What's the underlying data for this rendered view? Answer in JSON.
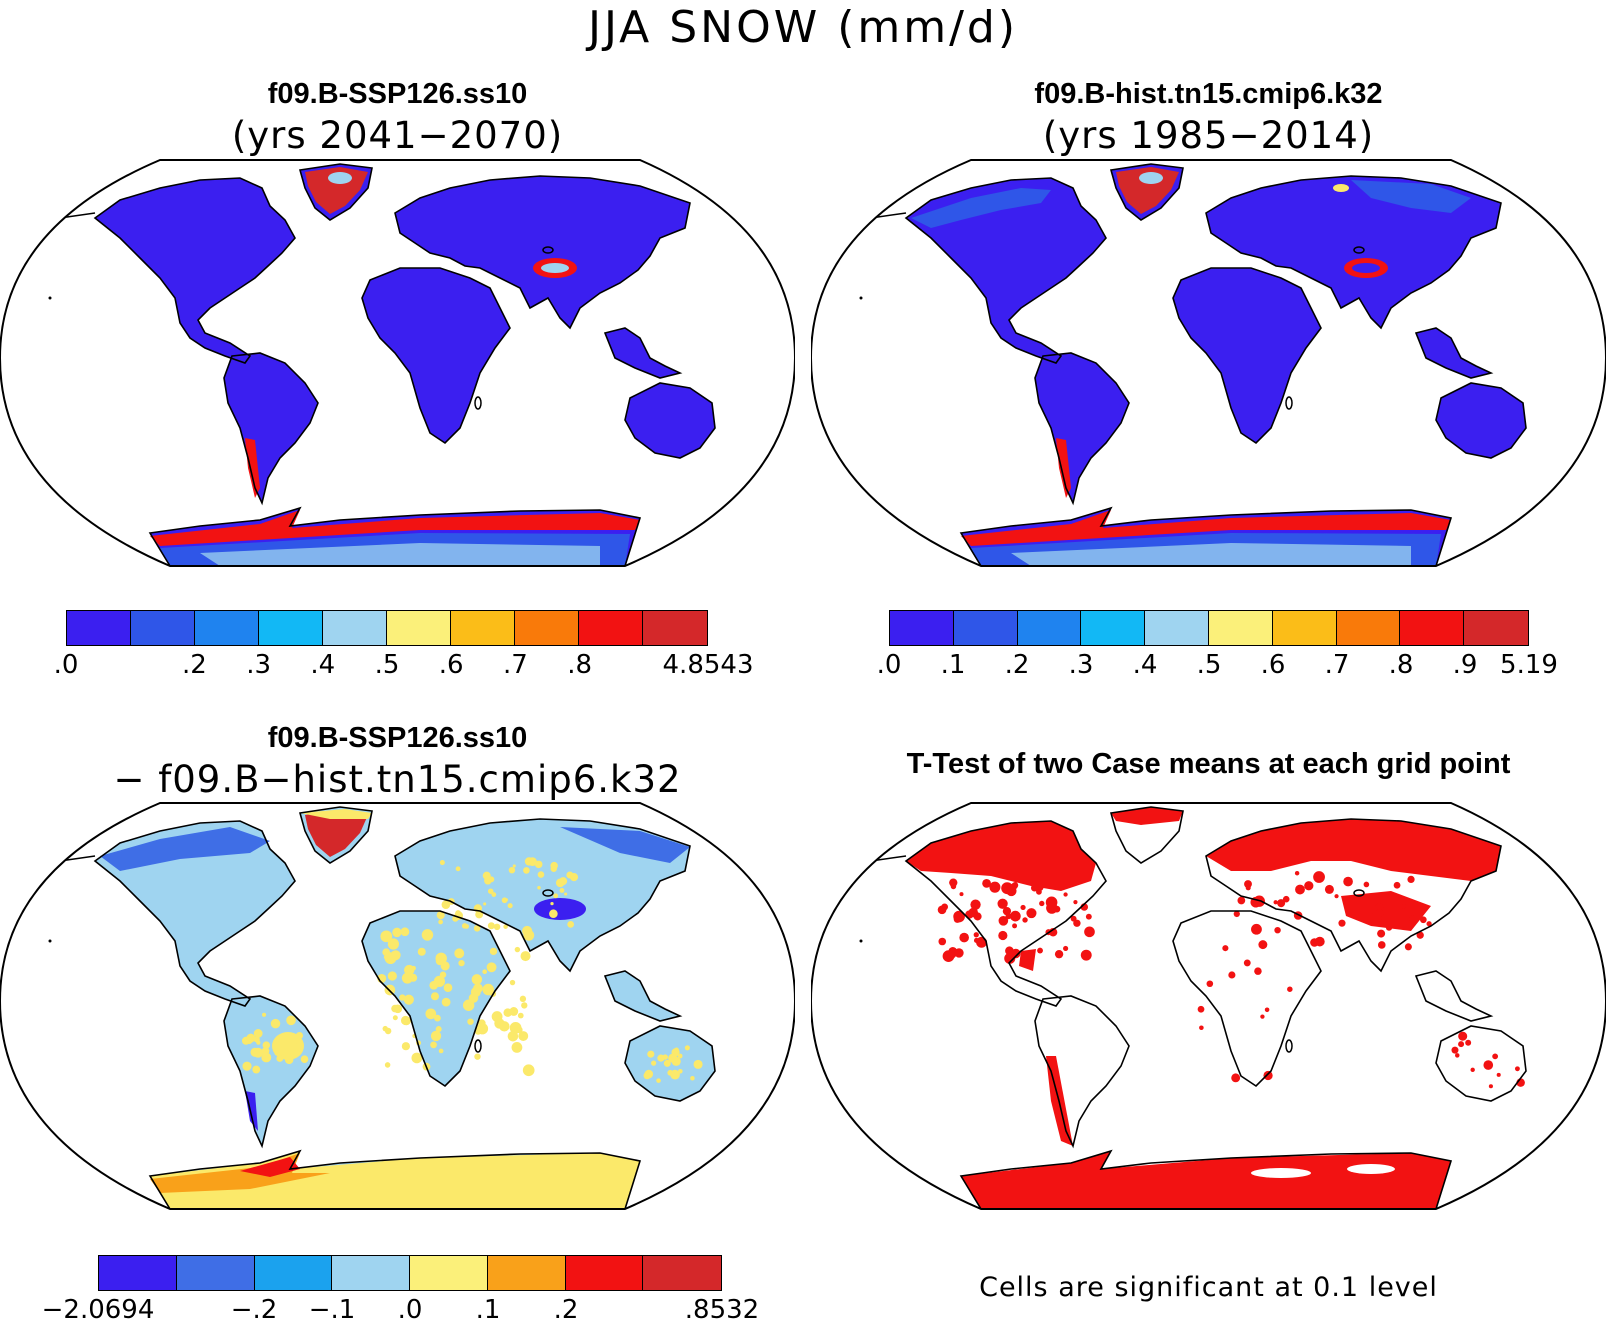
{
  "title": "JJA SNOW (mm/d)",
  "panels": {
    "tl": {
      "title": "f09.B-SSP126.ss10",
      "subtitle": "(yrs 2041−2070)"
    },
    "tr": {
      "title": "f09.B-hist.tn15.cmip6.k32",
      "subtitle": "(yrs 1985−2014)"
    },
    "bl": {
      "title": "f09.B-SSP126.ss10",
      "subtitle": "− f09.B−hist.tn15.cmip6.k32"
    },
    "br": {
      "title": "T-Test of two Case means at each grid point",
      "note": "Cells are significant at 0.1 level"
    }
  },
  "colorbars": {
    "tl": {
      "colors": [
        "#3b1ff0",
        "#2f56e8",
        "#1f83ef",
        "#12b8f5",
        "#9fd4f0",
        "#fbf07a",
        "#fbbd18",
        "#f97a0a",
        "#f21212",
        "#d4282a"
      ],
      "ticks": [
        ".0",
        "",
        ".2",
        ".3",
        ".4",
        ".5",
        ".6",
        ".7",
        ".8",
        "",
        "4.8543"
      ]
    },
    "tr": {
      "colors": [
        "#3b1ff0",
        "#2f56e8",
        "#1f83ef",
        "#12b8f5",
        "#9fd4f0",
        "#fbf07a",
        "#fbbd18",
        "#f97a0a",
        "#f21212",
        "#d4282a"
      ],
      "ticks": [
        ".0",
        ".1",
        ".2",
        ".3",
        ".4",
        ".5",
        ".6",
        ".7",
        ".8",
        ".9",
        "5.19"
      ]
    },
    "bl": {
      "colors": [
        "#3b1ff0",
        "#3f6ee6",
        "#1ba2ee",
        "#9fd4f0",
        "#fbf07a",
        "#f9a11a",
        "#f21212",
        "#d4282a"
      ],
      "ticks": [
        "−2.0694",
        "",
        "−.2",
        "−.1",
        ".0",
        ".1",
        ".2",
        "",
        ".8532"
      ]
    }
  },
  "map_colors": {
    "land_low": "#3b1ff0",
    "land_mid": "#2f56e8",
    "light_blue": "#9fd4f0",
    "yellow": "#fbe96a",
    "orange": "#f9a11a",
    "red": "#f21212",
    "dark_red": "#d4282a",
    "significant": "#f21212"
  }
}
